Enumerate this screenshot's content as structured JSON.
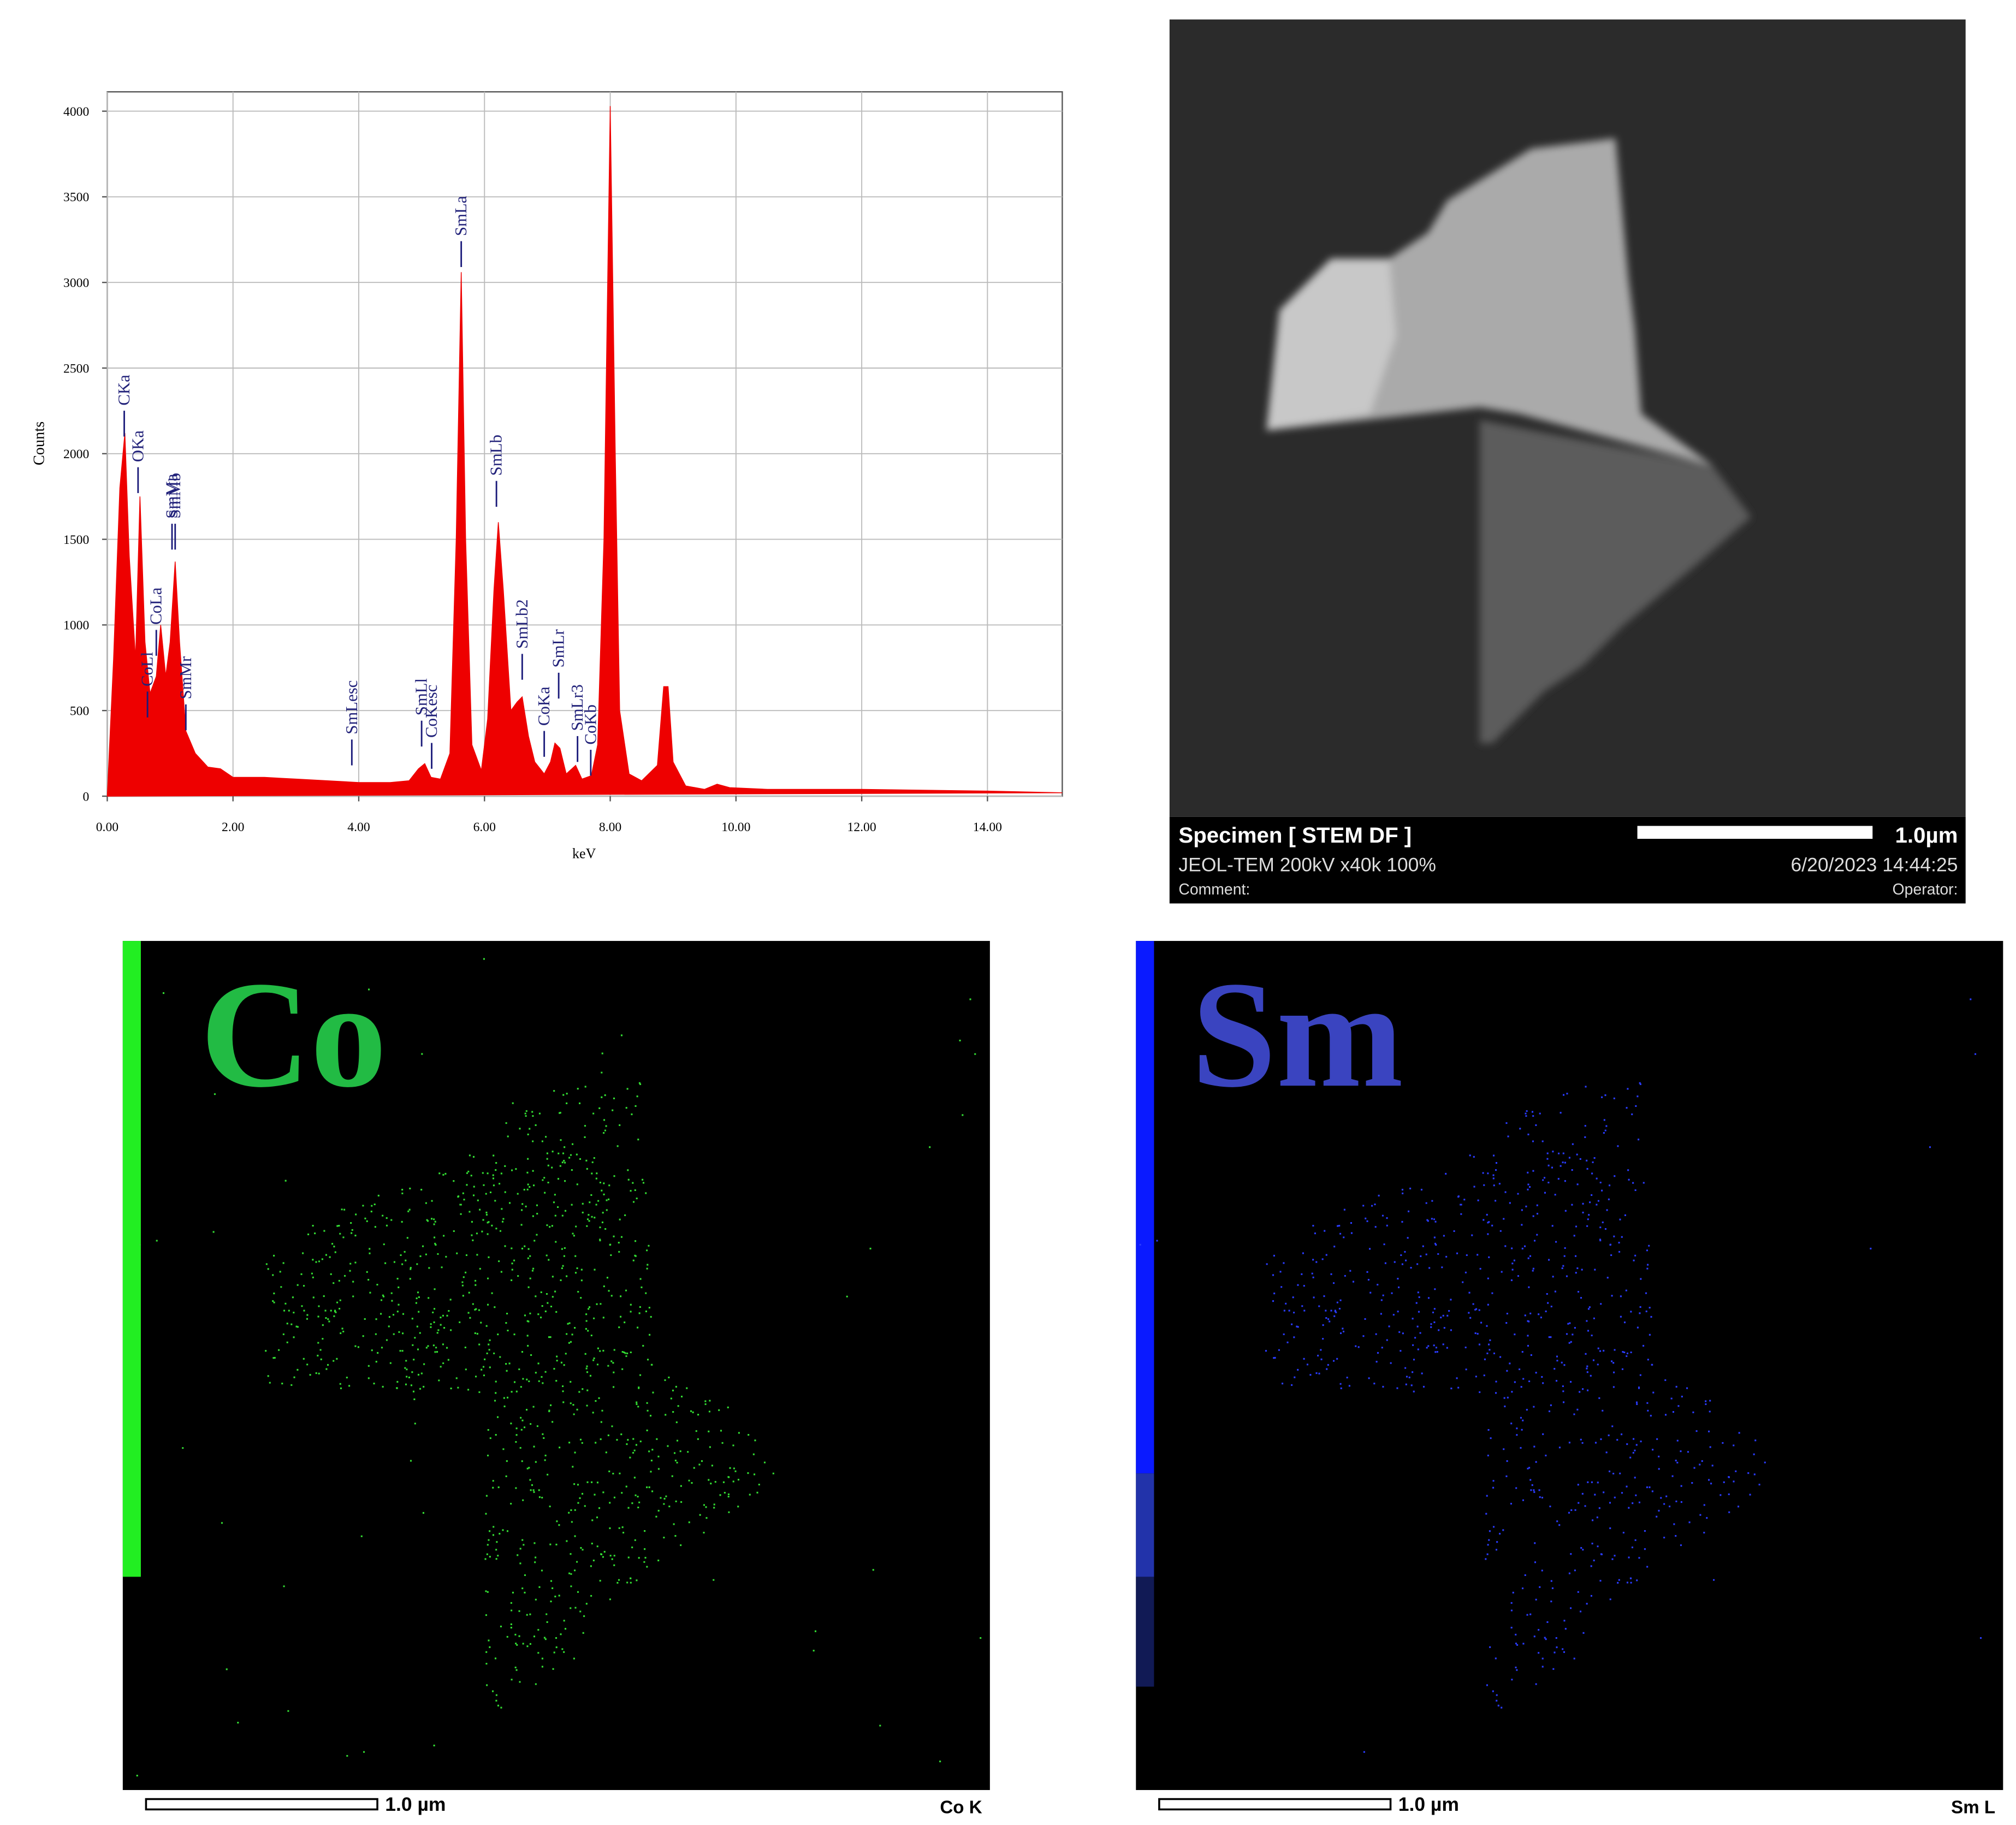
{
  "chart_data": {
    "type": "area",
    "x_label": "keV",
    "y_label": "Counts",
    "color": "#ee0000",
    "grid": true,
    "x": [
      0,
      0.1,
      0.2,
      0.28,
      0.35,
      0.45,
      0.52,
      0.6,
      0.68,
      0.78,
      0.85,
      0.93,
      1.0,
      1.08,
      1.15,
      1.25,
      1.4,
      1.6,
      1.8,
      2.0,
      2.5,
      3.0,
      3.5,
      4.0,
      4.5,
      4.8,
      4.95,
      5.05,
      5.15,
      5.3,
      5.45,
      5.55,
      5.63,
      5.7,
      5.8,
      5.95,
      6.05,
      6.15,
      6.22,
      6.3,
      6.42,
      6.52,
      6.6,
      6.7,
      6.8,
      6.95,
      7.05,
      7.12,
      7.2,
      7.3,
      7.45,
      7.55,
      7.7,
      7.8,
      7.9,
      8.0,
      8.08,
      8.15,
      8.3,
      8.5,
      8.75,
      8.85,
      8.92,
      9.0,
      9.2,
      9.5,
      9.7,
      9.9,
      10.5,
      12,
      14,
      15.19
    ],
    "values": [
      0,
      800,
      1800,
      2120,
      1400,
      800,
      1750,
      900,
      600,
      700,
      1000,
      700,
      900,
      1370,
      900,
      380,
      250,
      170,
      160,
      110,
      110,
      100,
      90,
      80,
      80,
      90,
      160,
      190,
      110,
      100,
      250,
      1500,
      3060,
      1500,
      300,
      150,
      450,
      1200,
      1600,
      1200,
      500,
      550,
      580,
      350,
      200,
      130,
      200,
      310,
      280,
      130,
      180,
      100,
      120,
      300,
      1500,
      4030,
      2000,
      500,
      130,
      90,
      180,
      640,
      640,
      200,
      60,
      40,
      70,
      50,
      40,
      40,
      30,
      20
    ],
    "xlim": [
      0,
      15.19
    ],
    "ylim": [
      0,
      4113
    ],
    "xticks": [
      {
        "value": 0,
        "label": "0.00"
      },
      {
        "value": 2,
        "label": "2.00"
      },
      {
        "value": 4,
        "label": "4.00"
      },
      {
        "value": 6,
        "label": "6.00"
      },
      {
        "value": 8,
        "label": "8.00"
      },
      {
        "value": 10,
        "label": "10.00"
      },
      {
        "value": 12,
        "label": "12.00"
      },
      {
        "value": 14,
        "label": "14.00"
      }
    ],
    "yticks": [
      0,
      500,
      1000,
      1500,
      2000,
      2500,
      3000,
      3500,
      4000
    ],
    "peak_labels": [
      {
        "text": "CKa",
        "x": 0.27,
        "y": 2100
      },
      {
        "text": "OKa",
        "x": 0.49,
        "y": 1770
      },
      {
        "text": "SmMa",
        "x": 1.03,
        "y": 1440
      },
      {
        "text": "SmMb",
        "x": 1.08,
        "y": 1440
      },
      {
        "text": "CoLa",
        "x": 0.78,
        "y": 820
      },
      {
        "text": "CoLl",
        "x": 0.64,
        "y": 460
      },
      {
        "text": "SmMr",
        "x": 1.25,
        "y": 385
      },
      {
        "text": "SmLesc",
        "x": 3.89,
        "y": 180
      },
      {
        "text": "CoKesc",
        "x": 5.16,
        "y": 160
      },
      {
        "text": "SmLl",
        "x": 5.0,
        "y": 290
      },
      {
        "text": "SmLa",
        "x": 5.63,
        "y": 3090
      },
      {
        "text": "SmLb",
        "x": 6.19,
        "y": 1690
      },
      {
        "text": "SmLb2",
        "x": 6.6,
        "y": 680
      },
      {
        "text": "CoKa",
        "x": 6.95,
        "y": 230
      },
      {
        "text": "SmLr",
        "x": 7.18,
        "y": 570
      },
      {
        "text": "SmLr3",
        "x": 7.48,
        "y": 200
      },
      {
        "text": "CoKb",
        "x": 7.69,
        "y": 120
      }
    ]
  },
  "stem_image": {
    "title": "Specimen [ STEM DF ]",
    "scale": "1.0µm",
    "instrument": "JEOL-TEM 200kV x40k 100%",
    "timestamp": "6/20/2023 14:44:25",
    "comment": "Comment:",
    "operator": "Operator:"
  },
  "maps": [
    {
      "element": "Co",
      "scale": "1.0 µm",
      "line": "Co K"
    },
    {
      "element": "Sm",
      "scale": "1.0 µm",
      "line": "Sm L"
    }
  ]
}
